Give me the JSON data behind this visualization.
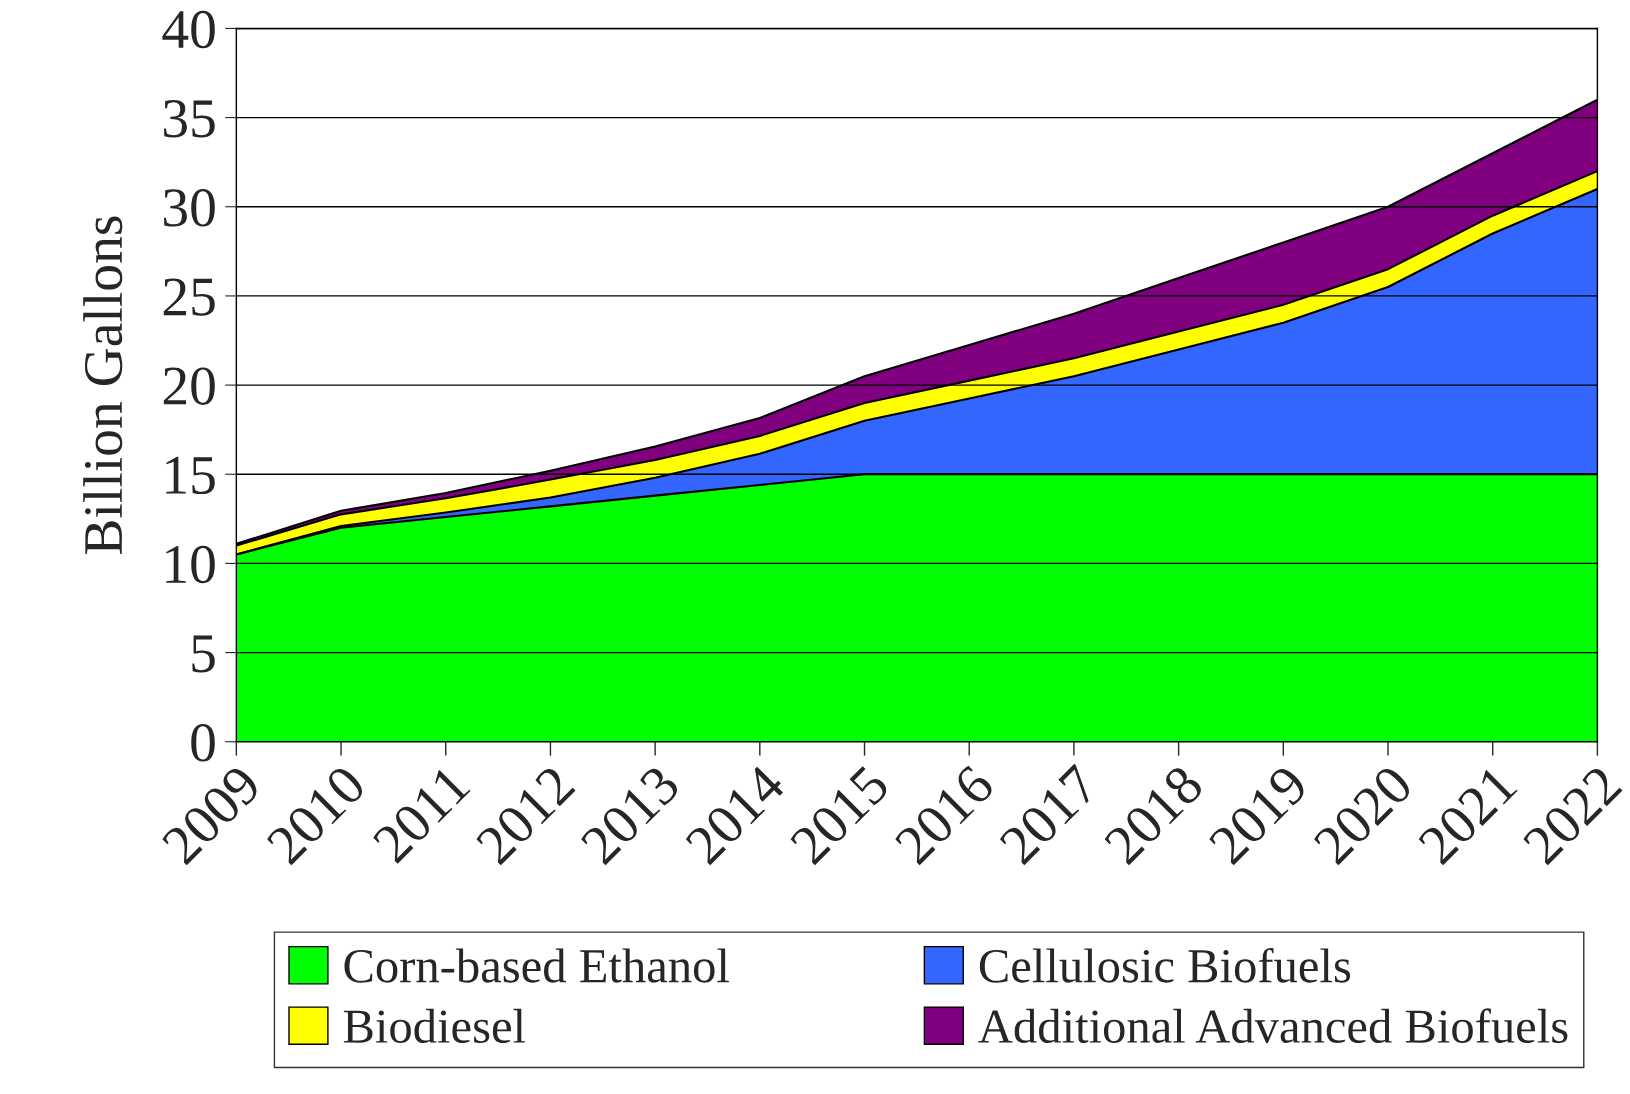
{
  "chart_data": {
    "type": "area",
    "stacked": true,
    "ylabel": "Billion Gallons",
    "categories": [
      "2009",
      "2010",
      "2011",
      "2012",
      "2013",
      "2014",
      "2015",
      "2016",
      "2017",
      "2018",
      "2019",
      "2020",
      "2021",
      "2022"
    ],
    "series": [
      {
        "name": "Corn-based Ethanol",
        "color": "#00ff00",
        "values": [
          10.5,
          12.0,
          12.6,
          13.2,
          13.8,
          14.4,
          15.0,
          15.0,
          15.0,
          15.0,
          15.0,
          15.0,
          15.0,
          15.0
        ]
      },
      {
        "name": "Cellulosic Biofuels",
        "color": "#3366ff",
        "values": [
          0,
          0.1,
          0.25,
          0.5,
          1.0,
          1.75,
          3.0,
          4.25,
          5.5,
          7.0,
          8.5,
          10.5,
          13.5,
          16.0
        ]
      },
      {
        "name": "Biodiesel",
        "color": "#ffff00",
        "values": [
          0.5,
          0.65,
          0.8,
          1.0,
          1.0,
          1.0,
          1.0,
          1.0,
          1.0,
          1.0,
          1.0,
          1.0,
          1.0,
          1.0
        ]
      },
      {
        "name": "Additional Advanced Biofuels",
        "color": "#800080",
        "values": [
          0.1,
          0.2,
          0.3,
          0.5,
          0.75,
          1.0,
          1.5,
          2.0,
          2.5,
          3.0,
          3.5,
          3.5,
          3.5,
          4.0
        ]
      }
    ],
    "ylim": [
      0,
      40
    ],
    "yticks": [
      0,
      5,
      10,
      15,
      20,
      25,
      30,
      35,
      40
    ],
    "grid": "y",
    "legend": "bottom"
  }
}
